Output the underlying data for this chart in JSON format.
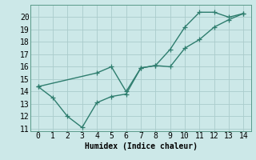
{
  "line1_x": [
    0,
    1,
    2,
    3,
    4,
    5,
    6,
    7,
    8,
    9,
    10,
    11,
    12,
    13,
    14
  ],
  "line1_y": [
    14.4,
    13.5,
    12.0,
    11.1,
    13.1,
    13.6,
    13.8,
    15.9,
    16.1,
    17.4,
    19.2,
    20.4,
    20.4,
    20.0,
    20.3
  ],
  "line2_x": [
    0,
    4,
    5,
    6,
    7,
    8,
    9,
    10,
    11,
    12,
    13,
    14
  ],
  "line2_y": [
    14.4,
    15.5,
    16.0,
    14.0,
    15.9,
    16.1,
    16.0,
    17.5,
    18.2,
    19.2,
    19.8,
    20.3
  ],
  "line_color": "#2e7d6e",
  "bg_color": "#cce8e8",
  "grid_color": "#aacccc",
  "xlabel": "Humidex (Indice chaleur)",
  "xlim": [
    -0.5,
    14.5
  ],
  "ylim": [
    10.8,
    21.0
  ],
  "xticks": [
    0,
    1,
    2,
    3,
    4,
    5,
    6,
    7,
    8,
    9,
    10,
    11,
    12,
    13,
    14
  ],
  "yticks": [
    11,
    12,
    13,
    14,
    15,
    16,
    17,
    18,
    19,
    20
  ],
  "marker": "+",
  "markersize": 4,
  "linewidth": 1.0,
  "label_fontsize": 7,
  "xlabel_fontsize": 7
}
